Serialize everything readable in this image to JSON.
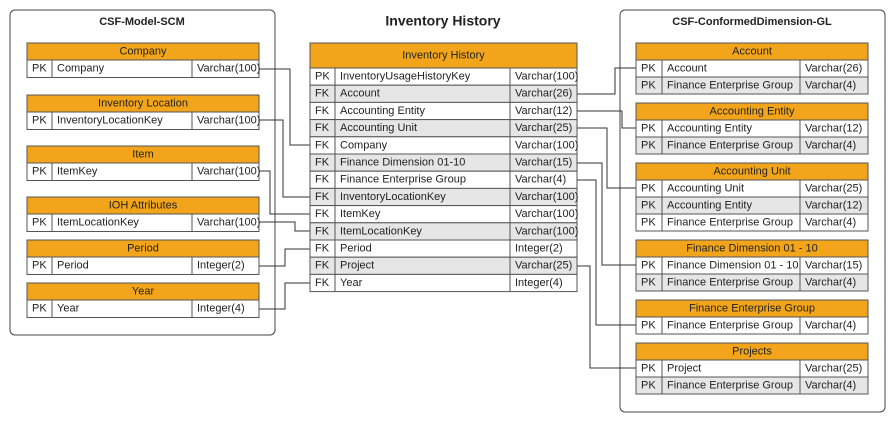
{
  "left": {
    "title": "CSF-Model-SCM",
    "tables": [
      {
        "title": "Company",
        "rows": [
          [
            "PK",
            "Company",
            "Varchar(100)"
          ]
        ]
      },
      {
        "title": "Inventory Location",
        "rows": [
          [
            "PK",
            "InventoryLocationKey",
            "Varchar(100)"
          ]
        ]
      },
      {
        "title": "Item",
        "rows": [
          [
            "PK",
            "ItemKey",
            "Varchar(100)"
          ]
        ]
      },
      {
        "title": "IOH Attributes",
        "rows": [
          [
            "PK",
            "ItemLocationKey",
            "Varchar(100)"
          ]
        ]
      },
      {
        "title": "Period",
        "rows": [
          [
            "PK",
            "Period",
            "Integer(2)"
          ]
        ]
      },
      {
        "title": "Year",
        "rows": [
          [
            "PK",
            "Year",
            "Integer(4)"
          ]
        ]
      }
    ]
  },
  "main": {
    "title": "Inventory History",
    "table": {
      "title": "Inventory History",
      "rows": [
        [
          "PK",
          "InventoryUsageHistoryKey",
          "Varchar(100)"
        ],
        [
          "FK",
          "Account",
          "Varchar(26)"
        ],
        [
          "FK",
          "Accounting Entity",
          "Varchar(12)"
        ],
        [
          "FK",
          "Accounting Unit",
          "Varchar(25)"
        ],
        [
          "FK",
          "Company",
          "Varchar(100)"
        ],
        [
          "FK",
          "Finance Dimension 01-10",
          "Varchar(15)"
        ],
        [
          "FK",
          "Finance Enterprise Group",
          "Varchar(4)"
        ],
        [
          "FK",
          "InventoryLocationKey",
          "Varchar(100)"
        ],
        [
          "FK",
          "ItemKey",
          "Varchar(100)"
        ],
        [
          "FK",
          "ItemLocationKey",
          "Varchar(100)"
        ],
        [
          "FK",
          "Period",
          "Integer(2)"
        ],
        [
          "FK",
          "Project",
          "Varchar(25)"
        ],
        [
          "FK",
          "Year",
          "Integer(4)"
        ]
      ]
    }
  },
  "right": {
    "title": "CSF-ConformedDimension-GL",
    "tables": [
      {
        "title": "Account",
        "rows": [
          [
            "PK",
            "Account",
            "Varchar(26)"
          ],
          [
            "PK",
            "Finance Enterprise Group",
            "Varchar(4)"
          ]
        ]
      },
      {
        "title": "Accounting Entity",
        "rows": [
          [
            "PK",
            "Accounting Entity",
            "Varchar(12)"
          ],
          [
            "PK",
            "Finance Enterprise Group",
            "Varchar(4)"
          ]
        ]
      },
      {
        "title": "Accounting Unit",
        "rows": [
          [
            "PK",
            "Accounting Unit",
            "Varchar(25)"
          ],
          [
            "PK",
            "Accounting Entity",
            "Varchar(12)"
          ],
          [
            "PK",
            "Finance Enterprise Group",
            "Varchar(4)"
          ]
        ]
      },
      {
        "title": "Finance Dimension 01 - 10",
        "rows": [
          [
            "PK",
            "Finance Dimension 01 - 10",
            "Varchar(15)"
          ],
          [
            "PK",
            "Finance Enterprise Group",
            "Varchar(4)"
          ]
        ]
      },
      {
        "title": "Finance Enterprise Group",
        "rows": [
          [
            "PK",
            "Finance Enterprise Group",
            "Varchar(4)"
          ]
        ]
      },
      {
        "title": "Projects",
        "rows": [
          [
            "PK",
            "Project",
            "Varchar(25)"
          ],
          [
            "PK",
            "Finance Enterprise Group",
            "Varchar(4)"
          ]
        ]
      }
    ]
  }
}
